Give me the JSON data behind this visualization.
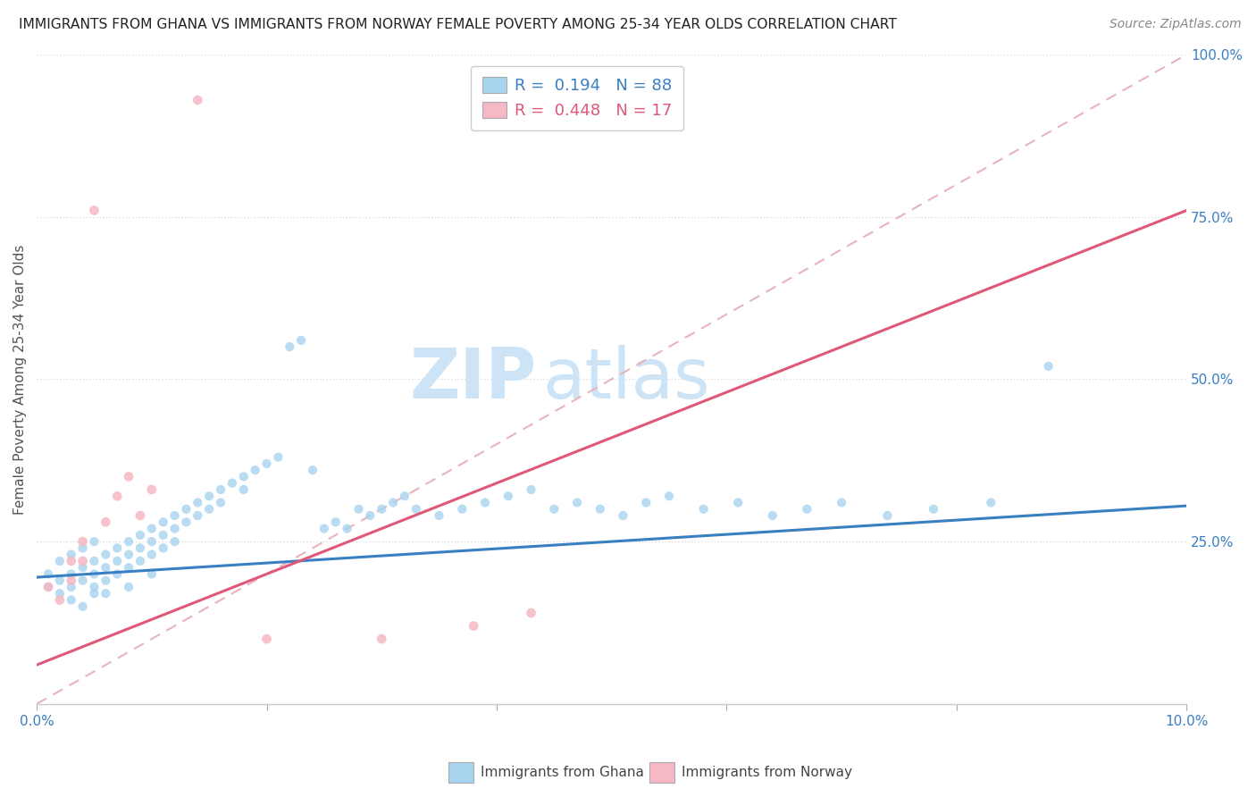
{
  "title": "IMMIGRANTS FROM GHANA VS IMMIGRANTS FROM NORWAY FEMALE POVERTY AMONG 25-34 YEAR OLDS CORRELATION CHART",
  "source": "Source: ZipAtlas.com",
  "ylabel": "Female Poverty Among 25-34 Year Olds",
  "xlim": [
    0.0,
    0.1
  ],
  "ylim": [
    0.0,
    1.0
  ],
  "ghana_color": "#a8d4f0",
  "norway_color": "#f5b8c4",
  "ghana_line_color": "#3a7fc1",
  "norway_line_color": "#e05878",
  "ref_line_color": "#e8b4bc",
  "ref_line_dash": [
    6,
    4
  ],
  "ghana_R": 0.194,
  "ghana_N": 88,
  "norway_R": 0.448,
  "norway_N": 17,
  "watermark_zip": "ZIP",
  "watermark_atlas": "atlas",
  "watermark_color": "#cce4f5",
  "grid_color": "#dddddd",
  "tick_color": "#3a7fc1",
  "title_color": "#222222",
  "source_color": "#888888",
  "legend_border_color": "#cccccc",
  "bottom_label_color": "#444444",
  "seed": 12345,
  "ghana_scatter_x": [
    0.002,
    0.003,
    0.003,
    0.004,
    0.004,
    0.004,
    0.005,
    0.005,
    0.005,
    0.005,
    0.006,
    0.006,
    0.006,
    0.006,
    0.007,
    0.007,
    0.007,
    0.008,
    0.008,
    0.008,
    0.008,
    0.009,
    0.009,
    0.009,
    0.01,
    0.01,
    0.01,
    0.01,
    0.011,
    0.011,
    0.011,
    0.012,
    0.012,
    0.012,
    0.013,
    0.013,
    0.014,
    0.014,
    0.015,
    0.015,
    0.016,
    0.016,
    0.017,
    0.018,
    0.018,
    0.019,
    0.02,
    0.021,
    0.022,
    0.023,
    0.024,
    0.025,
    0.026,
    0.027,
    0.028,
    0.029,
    0.03,
    0.031,
    0.032,
    0.033,
    0.035,
    0.037,
    0.039,
    0.041,
    0.043,
    0.045,
    0.047,
    0.049,
    0.051,
    0.053,
    0.055,
    0.058,
    0.061,
    0.064,
    0.067,
    0.07,
    0.074,
    0.078,
    0.083,
    0.088,
    0.001,
    0.001,
    0.002,
    0.002,
    0.003,
    0.003,
    0.004,
    0.005
  ],
  "ghana_scatter_y": [
    0.22,
    0.2,
    0.23,
    0.21,
    0.19,
    0.24,
    0.22,
    0.2,
    0.18,
    0.25,
    0.23,
    0.21,
    0.19,
    0.17,
    0.24,
    0.22,
    0.2,
    0.25,
    0.23,
    0.21,
    0.18,
    0.26,
    0.24,
    0.22,
    0.27,
    0.25,
    0.23,
    0.2,
    0.28,
    0.26,
    0.24,
    0.29,
    0.27,
    0.25,
    0.3,
    0.28,
    0.31,
    0.29,
    0.32,
    0.3,
    0.33,
    0.31,
    0.34,
    0.35,
    0.33,
    0.36,
    0.37,
    0.38,
    0.55,
    0.56,
    0.36,
    0.27,
    0.28,
    0.27,
    0.3,
    0.29,
    0.3,
    0.31,
    0.32,
    0.3,
    0.29,
    0.3,
    0.31,
    0.32,
    0.33,
    0.3,
    0.31,
    0.3,
    0.29,
    0.31,
    0.32,
    0.3,
    0.31,
    0.29,
    0.3,
    0.31,
    0.29,
    0.3,
    0.31,
    0.52,
    0.18,
    0.2,
    0.17,
    0.19,
    0.16,
    0.18,
    0.15,
    0.17
  ],
  "norway_scatter_x": [
    0.001,
    0.002,
    0.003,
    0.003,
    0.004,
    0.004,
    0.005,
    0.006,
    0.007,
    0.008,
    0.009,
    0.01,
    0.014,
    0.02,
    0.03,
    0.038,
    0.043
  ],
  "norway_scatter_y": [
    0.18,
    0.16,
    0.22,
    0.19,
    0.25,
    0.22,
    0.76,
    0.28,
    0.32,
    0.35,
    0.29,
    0.33,
    0.93,
    0.1,
    0.1,
    0.12,
    0.14
  ],
  "ghana_line_x0": 0.0,
  "ghana_line_x1": 0.1,
  "ghana_line_y0": 0.195,
  "ghana_line_y1": 0.305,
  "norway_line_x0": 0.0,
  "norway_line_x1": 0.1,
  "norway_line_y0": 0.06,
  "norway_line_y1": 0.76
}
